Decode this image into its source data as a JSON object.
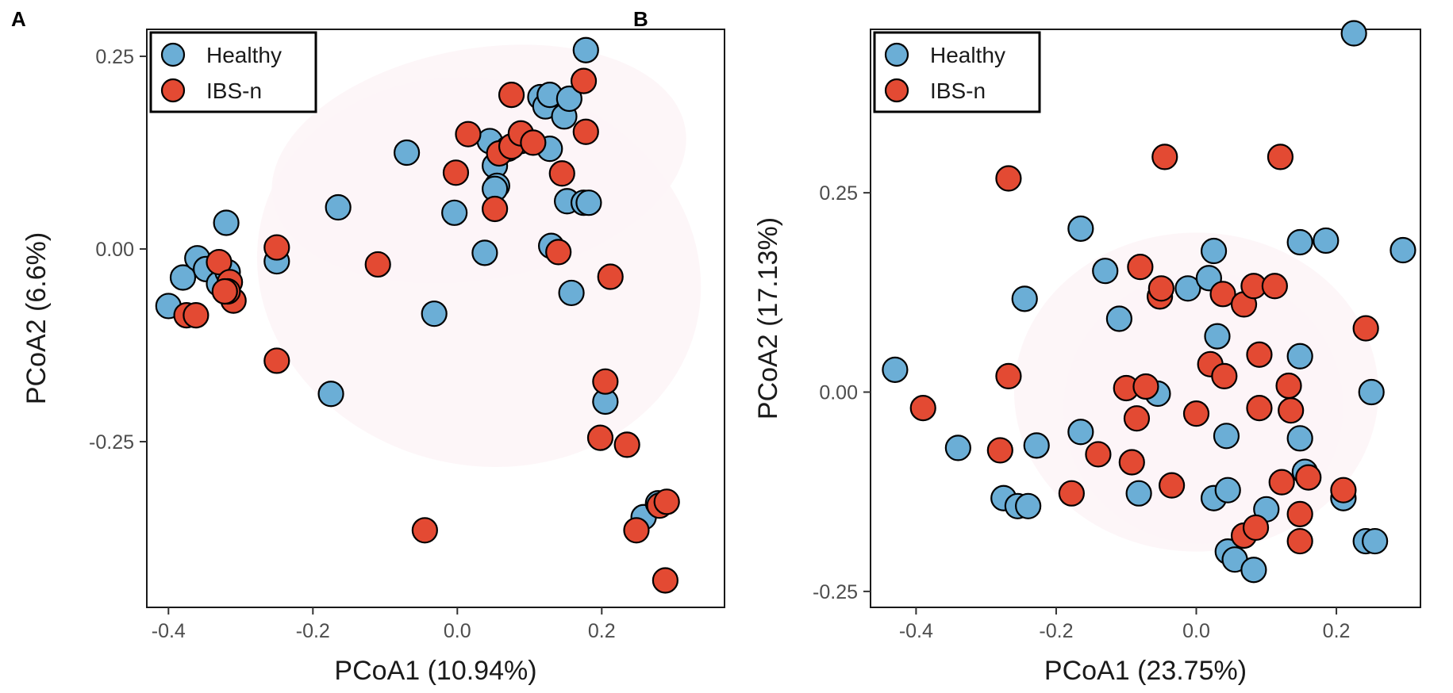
{
  "colors": {
    "healthy": "#6baed6",
    "ibs": "#e34a33",
    "ellipse": "#fdf5f7"
  },
  "chart_data": [
    {
      "type": "scatter",
      "panel": "A",
      "xlabel": "PCoA1 (10.94%)",
      "ylabel": "PCoA2 (6.6%)",
      "xlim": [
        -0.43,
        0.37
      ],
      "ylim": [
        -0.465,
        0.285
      ],
      "xticks": [
        -0.4,
        -0.2,
        0.0,
        0.2
      ],
      "xtick_labels": [
        "-0.4",
        "-0.2",
        "0.0",
        "0.2"
      ],
      "yticks": [
        0.25,
        0.0,
        -0.25
      ],
      "ytick_labels": [
        "0.25",
        "0.00",
        "-0.25"
      ],
      "legend": {
        "position": "top-left",
        "entries": [
          "Healthy",
          "IBS-n"
        ]
      },
      "ellipses": [
        {
          "group": "Healthy",
          "cx": 0.03,
          "cy": 0.11,
          "rx": 0.29,
          "ry": 0.15,
          "angle_deg": 10
        },
        {
          "group": "IBS-n",
          "cx": 0.03,
          "cy": -0.03,
          "rx": 0.31,
          "ry": 0.25,
          "angle_deg": -15
        }
      ],
      "series": [
        {
          "name": "Healthy",
          "points": [
            [
              -0.4,
              -0.074
            ],
            [
              -0.38,
              -0.037
            ],
            [
              -0.36,
              -0.012
            ],
            [
              -0.348,
              -0.026
            ],
            [
              -0.33,
              -0.045
            ],
            [
              -0.318,
              -0.03
            ],
            [
              -0.32,
              0.034
            ],
            [
              -0.25,
              -0.016
            ],
            [
              -0.165,
              0.054
            ],
            [
              -0.175,
              -0.188
            ],
            [
              -0.07,
              0.125
            ],
            [
              -0.032,
              -0.084
            ],
            [
              -0.004,
              0.047
            ],
            [
              0.038,
              -0.005
            ],
            [
              0.045,
              0.14
            ],
            [
              0.052,
              0.108
            ],
            [
              0.055,
              0.082
            ],
            [
              0.052,
              0.078
            ],
            [
              0.07,
              0.13
            ],
            [
              0.088,
              0.14
            ],
            [
              0.115,
              0.197
            ],
            [
              0.122,
              0.185
            ],
            [
              0.128,
              0.2
            ],
            [
              0.128,
              0.13
            ],
            [
              0.13,
              0.004
            ],
            [
              0.148,
              0.172
            ],
            [
              0.155,
              0.195
            ],
            [
              0.152,
              0.062
            ],
            [
              0.158,
              -0.057
            ],
            [
              0.175,
              0.06
            ],
            [
              0.178,
              0.258
            ],
            [
              0.182,
              0.06
            ],
            [
              0.205,
              -0.198
            ],
            [
              0.258,
              -0.348
            ],
            [
              0.278,
              -0.33
            ]
          ]
        },
        {
          "name": "IBS-n",
          "points": [
            [
              -0.375,
              -0.086
            ],
            [
              -0.362,
              -0.086
            ],
            [
              -0.33,
              -0.017
            ],
            [
              -0.315,
              -0.043
            ],
            [
              -0.31,
              -0.067
            ],
            [
              -0.318,
              -0.055
            ],
            [
              -0.322,
              -0.055
            ],
            [
              -0.25,
              0.002
            ],
            [
              -0.25,
              -0.145
            ],
            [
              -0.11,
              -0.02
            ],
            [
              -0.045,
              -0.365
            ],
            [
              -0.002,
              0.099
            ],
            [
              0.015,
              0.149
            ],
            [
              0.052,
              0.052
            ],
            [
              0.058,
              0.124
            ],
            [
              0.075,
              0.2
            ],
            [
              0.075,
              0.133
            ],
            [
              0.088,
              0.15
            ],
            [
              0.105,
              0.138
            ],
            [
              0.14,
              -0.004
            ],
            [
              0.145,
              0.098
            ],
            [
              0.175,
              0.218
            ],
            [
              0.178,
              0.152
            ],
            [
              0.198,
              -0.245
            ],
            [
              0.205,
              -0.172
            ],
            [
              0.212,
              -0.036
            ],
            [
              0.235,
              -0.254
            ],
            [
              0.248,
              -0.365
            ],
            [
              0.28,
              -0.333
            ],
            [
              0.29,
              -0.328
            ],
            [
              0.288,
              -0.43
            ]
          ]
        }
      ]
    },
    {
      "type": "scatter",
      "panel": "B",
      "xlabel": "PCoA1 (23.75%)",
      "ylabel": "PCoA2 (17.13%)",
      "xlim": [
        -0.465,
        0.32
      ],
      "ylim": [
        -0.27,
        0.455
      ],
      "xticks": [
        -0.4,
        -0.2,
        0.0,
        0.2
      ],
      "xtick_labels": [
        "-0.4",
        "-0.2",
        "0.0",
        "0.2"
      ],
      "yticks": [
        0.25,
        0.0,
        -0.25
      ],
      "ytick_labels": [
        "0.25",
        "0.00",
        "-0.25"
      ],
      "legend": {
        "position": "top-left",
        "entries": [
          "Healthy",
          "IBS-n"
        ]
      },
      "ellipses": [
        {
          "group": "Healthy",
          "cx": 0.0,
          "cy": 0.0,
          "rx": 0.26,
          "ry": 0.2,
          "angle_deg": 0
        },
        {
          "group": "IBS-n",
          "cx": 0.01,
          "cy": -0.02,
          "rx": 0.2,
          "ry": 0.17,
          "angle_deg": 10
        }
      ],
      "series": [
        {
          "name": "Healthy",
          "points": [
            [
              -0.43,
              0.028
            ],
            [
              -0.34,
              -0.07
            ],
            [
              -0.275,
              -0.133
            ],
            [
              -0.255,
              -0.143
            ],
            [
              -0.24,
              -0.143
            ],
            [
              -0.245,
              0.117
            ],
            [
              -0.228,
              -0.067
            ],
            [
              -0.165,
              0.205
            ],
            [
              -0.165,
              -0.05
            ],
            [
              -0.13,
              0.152
            ],
            [
              -0.11,
              0.092
            ],
            [
              -0.082,
              -0.127
            ],
            [
              -0.055,
              -0.002
            ],
            [
              -0.012,
              0.13
            ],
            [
              0.018,
              0.143
            ],
            [
              0.025,
              0.177
            ],
            [
              0.025,
              -0.133
            ],
            [
              0.03,
              0.07
            ],
            [
              0.043,
              -0.055
            ],
            [
              0.045,
              -0.2
            ],
            [
              0.055,
              -0.21
            ],
            [
              0.045,
              -0.123
            ],
            [
              0.1,
              -0.147
            ],
            [
              0.082,
              -0.223
            ],
            [
              0.148,
              0.045
            ],
            [
              0.148,
              -0.058
            ],
            [
              0.148,
              0.188
            ],
            [
              0.155,
              -0.1
            ],
            [
              0.185,
              0.19
            ],
            [
              0.21,
              -0.133
            ],
            [
              0.225,
              0.45
            ],
            [
              0.25,
              0.0
            ],
            [
              0.242,
              -0.187
            ],
            [
              0.255,
              -0.187
            ],
            [
              0.295,
              0.178
            ]
          ]
        },
        {
          "name": "IBS-n",
          "points": [
            [
              -0.39,
              -0.02
            ],
            [
              -0.28,
              -0.073
            ],
            [
              -0.268,
              0.268
            ],
            [
              -0.268,
              0.02
            ],
            [
              -0.178,
              -0.127
            ],
            [
              -0.14,
              -0.078
            ],
            [
              -0.1,
              0.005
            ],
            [
              -0.092,
              -0.088
            ],
            [
              -0.085,
              -0.033
            ],
            [
              -0.08,
              0.157
            ],
            [
              -0.072,
              0.007
            ],
            [
              -0.052,
              0.12
            ],
            [
              -0.05,
              0.13
            ],
            [
              -0.045,
              0.295
            ],
            [
              -0.035,
              -0.117
            ],
            [
              0.0,
              -0.027
            ],
            [
              0.02,
              0.035
            ],
            [
              0.04,
              0.02
            ],
            [
              0.038,
              0.123
            ],
            [
              0.068,
              -0.18
            ],
            [
              0.068,
              0.11
            ],
            [
              0.085,
              -0.17
            ],
            [
              0.082,
              0.133
            ],
            [
              0.09,
              0.047
            ],
            [
              0.09,
              -0.02
            ],
            [
              0.12,
              0.295
            ],
            [
              0.112,
              0.133
            ],
            [
              0.122,
              -0.113
            ],
            [
              0.132,
              0.008
            ],
            [
              0.135,
              -0.023
            ],
            [
              0.148,
              -0.187
            ],
            [
              0.148,
              -0.153
            ],
            [
              0.16,
              -0.107
            ],
            [
              0.21,
              -0.123
            ],
            [
              0.242,
              0.08
            ]
          ]
        }
      ]
    }
  ]
}
